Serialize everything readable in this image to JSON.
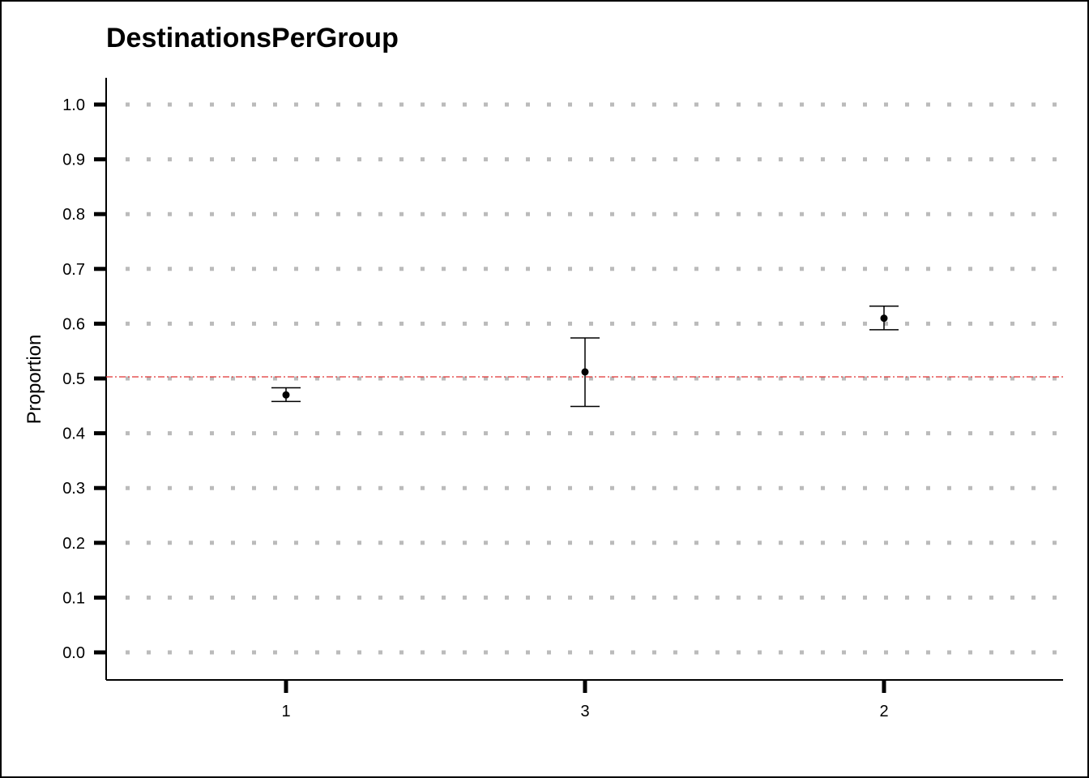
{
  "chart_data": {
    "type": "scatter",
    "title": "DestinationsPerGroup",
    "xlabel": "",
    "ylabel": "Proportion",
    "categories": [
      "1",
      "3",
      "2"
    ],
    "points": [
      {
        "category": "1",
        "value": 0.47,
        "lower": 0.458,
        "upper": 0.483
      },
      {
        "category": "3",
        "value": 0.512,
        "lower": 0.449,
        "upper": 0.574
      },
      {
        "category": "2",
        "value": 0.61,
        "lower": 0.589,
        "upper": 0.632
      }
    ],
    "yticks": [
      "0.0",
      "0.1",
      "0.2",
      "0.3",
      "0.4",
      "0.5",
      "0.6",
      "0.7",
      "0.8",
      "0.9",
      "1.0"
    ],
    "ylim": [
      -0.05,
      1.05
    ],
    "grid": true,
    "reference_line": {
      "value": 0.503,
      "color": "#e03030"
    },
    "colors": {
      "points": "#000000",
      "grid": "#bbbbbb",
      "reference": "#e03030"
    }
  }
}
